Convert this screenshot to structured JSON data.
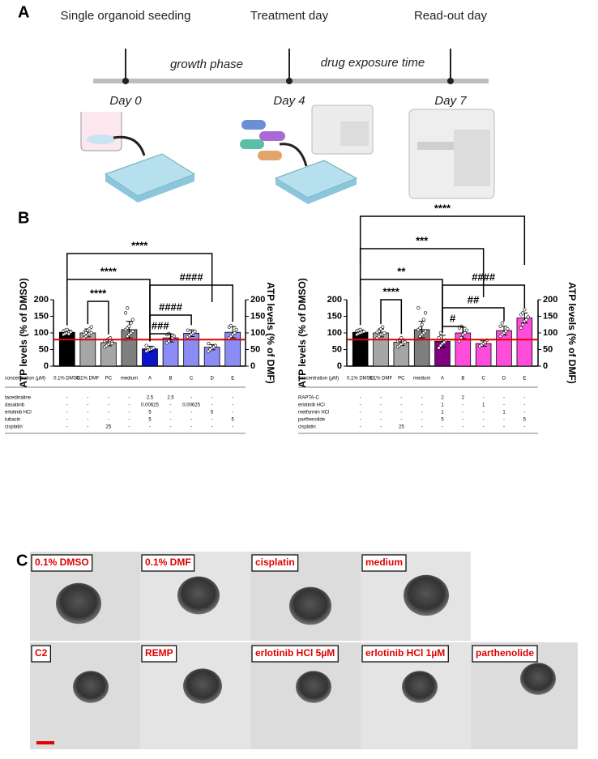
{
  "panel_a": {
    "label": "A",
    "stages": [
      "Single organoid seeding",
      "Treatment day",
      "Read-out day"
    ],
    "phases": [
      "growth phase",
      "drug exposure time"
    ],
    "days": [
      "Day 0",
      "Day 4",
      "Day 7"
    ]
  },
  "panel_b_label": "B",
  "chart_data": [
    {
      "type": "bar",
      "ylabel": "ATP levels (% of DMSO)",
      "y2label": "ATP levels (% of DMF)",
      "categories": [
        "0.1% DMSO",
        "0.1% DMF",
        "PC",
        "medium",
        "A",
        "B",
        "C",
        "D",
        "E"
      ],
      "values": [
        102,
        100,
        71,
        110,
        52,
        85,
        99,
        57,
        102
      ],
      "errors": [
        6,
        12,
        10,
        25,
        8,
        12,
        10,
        8,
        17
      ],
      "colors": [
        "#000000",
        "#a6a6a6",
        "#a6a6a6",
        "#7f7f7f",
        "#0a14c8",
        "#8c8cf5",
        "#8c8cf5",
        "#8c8cf5",
        "#8c8cf5"
      ],
      "points": [
        [
          95,
          98,
          100,
          102,
          104,
          106,
          108,
          110,
          97,
          103
        ],
        [
          85,
          90,
          95,
          98,
          100,
          102,
          105,
          108,
          112,
          118,
          95,
          100
        ],
        [
          58,
          62,
          66,
          70,
          72,
          75,
          78,
          82,
          85,
          68
        ],
        [
          80,
          90,
          95,
          100,
          105,
          110,
          115,
          120,
          130,
          140,
          160,
          175
        ],
        [
          45,
          48,
          50,
          52,
          55,
          62
        ],
        [
          70,
          75,
          80,
          85,
          90,
          95,
          98
        ],
        [
          88,
          92,
          96,
          100,
          104,
          108
        ],
        [
          45,
          50,
          55,
          58,
          62,
          68
        ],
        [
          85,
          90,
          95,
          100,
          110,
          118,
          122
        ]
      ],
      "reference_line": 80,
      "reference_color": "#e00000",
      "ylim": [
        0,
        200
      ],
      "yticks": [
        0,
        50,
        100,
        150,
        200
      ],
      "y2lim": [
        0,
        200
      ],
      "y2ticks": [
        0,
        50,
        100,
        150,
        200
      ],
      "brackets": [
        {
          "from": 0,
          "to": 7,
          "label": "****"
        },
        {
          "from": 0,
          "to": 4,
          "label": "****"
        },
        {
          "from": 1,
          "to": 2,
          "label": "****"
        },
        {
          "from": 4,
          "to": 8,
          "label": "####"
        },
        {
          "from": 4,
          "to": 6,
          "label": "####"
        },
        {
          "from": 4,
          "to": 5,
          "label": "###"
        }
      ],
      "table": {
        "header": "concentration (µM)",
        "rows": [
          {
            "label": "tacedinaline",
            "values": [
              "-",
              "-",
              "-",
              "-",
              "2.5",
              "2.5",
              "-",
              "-",
              "-"
            ]
          },
          {
            "label": "dasatinib",
            "values": [
              "-",
              "-",
              "-",
              "-",
              "0.00625",
              "-",
              "0.00625",
              "-",
              "-"
            ]
          },
          {
            "label": "erlotinib HCl",
            "values": [
              "-",
              "-",
              "-",
              "-",
              "5",
              "-",
              "-",
              "5",
              "-"
            ]
          },
          {
            "label": "tubacin",
            "values": [
              "-",
              "-",
              "-",
              "-",
              "5",
              "-",
              "-",
              "-",
              "5"
            ]
          },
          {
            "label": "cisplatin",
            "values": [
              "-",
              "-",
              "25",
              "-",
              "-",
              "-",
              "-",
              "-",
              "-"
            ]
          }
        ]
      }
    },
    {
      "type": "bar",
      "ylabel": "ATP levels (% of DMSO)",
      "y2label": "ATP levels (% of DMF)",
      "categories": [
        "0.1% DMSO",
        "0.1% DMF",
        "PC",
        "medium",
        "A",
        "B",
        "C",
        "D",
        "E"
      ],
      "values": [
        102,
        100,
        72,
        110,
        75,
        100,
        68,
        107,
        145
      ],
      "errors": [
        7,
        12,
        10,
        25,
        18,
        17,
        8,
        13,
        15
      ],
      "colors": [
        "#000000",
        "#a6a6a6",
        "#a6a6a6",
        "#7f7f7f",
        "#800080",
        "#ff4ddb",
        "#ff4ddb",
        "#ff4ddb",
        "#ff4ddb"
      ],
      "points": [
        [
          95,
          98,
          100,
          102,
          104,
          106,
          108,
          110
        ],
        [
          85,
          90,
          95,
          98,
          100,
          102,
          105,
          112,
          118
        ],
        [
          58,
          62,
          66,
          70,
          72,
          75,
          78,
          85
        ],
        [
          80,
          90,
          95,
          100,
          105,
          110,
          115,
          125,
          140,
          160,
          175
        ],
        [
          55,
          62,
          68,
          72,
          78,
          85,
          100
        ],
        [
          75,
          85,
          95,
          100,
          108,
          115,
          120
        ],
        [
          60,
          64,
          68,
          72,
          78
        ],
        [
          90,
          95,
          100,
          105,
          112,
          120,
          130
        ],
        [
          115,
          125,
          135,
          140,
          148,
          155,
          160,
          170
        ]
      ],
      "reference_line": 80,
      "reference_color": "#e00000",
      "ylim": [
        0,
        200
      ],
      "yticks": [
        0,
        50,
        100,
        150,
        200
      ],
      "y2lim": [
        0,
        200
      ],
      "y2ticks": [
        0,
        50,
        100,
        150,
        200
      ],
      "brackets": [
        {
          "from": 0,
          "to": 8,
          "label": "****"
        },
        {
          "from": 0,
          "to": 6,
          "label": "***"
        },
        {
          "from": 0,
          "to": 4,
          "label": "**"
        },
        {
          "from": 1,
          "to": 2,
          "label": "****"
        },
        {
          "from": 4,
          "to": 8,
          "label": "####"
        },
        {
          "from": 4,
          "to": 7,
          "label": "##"
        },
        {
          "from": 4,
          "to": 5,
          "label": "#"
        }
      ],
      "table": {
        "header": "concentration (µM)",
        "rows": [
          {
            "label": "RAPTA-C",
            "values": [
              "-",
              "-",
              "-",
              "-",
              "2",
              "2",
              "-",
              "-",
              "-"
            ]
          },
          {
            "label": "erlotinib HCl",
            "values": [
              "-",
              "-",
              "-",
              "-",
              "1",
              "-",
              "1",
              "-",
              "-"
            ]
          },
          {
            "label": "metformin HCl",
            "values": [
              "-",
              "-",
              "-",
              "-",
              "1",
              "-",
              "-",
              "1",
              "-"
            ]
          },
          {
            "label": "parthenolide",
            "values": [
              "-",
              "-",
              "-",
              "-",
              "5",
              "-",
              "-",
              "-",
              "5"
            ]
          },
          {
            "label": "cisplatin",
            "values": [
              "-",
              "-",
              "25",
              "-",
              "-",
              "-",
              "-",
              "-",
              "-"
            ]
          }
        ]
      }
    }
  ],
  "panel_c": {
    "label": "C",
    "images": [
      "0.1% DMSO",
      "0.1% DMF",
      "cisplatin",
      "medium",
      "C2",
      "REMP",
      "erlotinib HCl 5µM",
      "erlotinib HCl 1µM",
      "parthenolide"
    ]
  }
}
